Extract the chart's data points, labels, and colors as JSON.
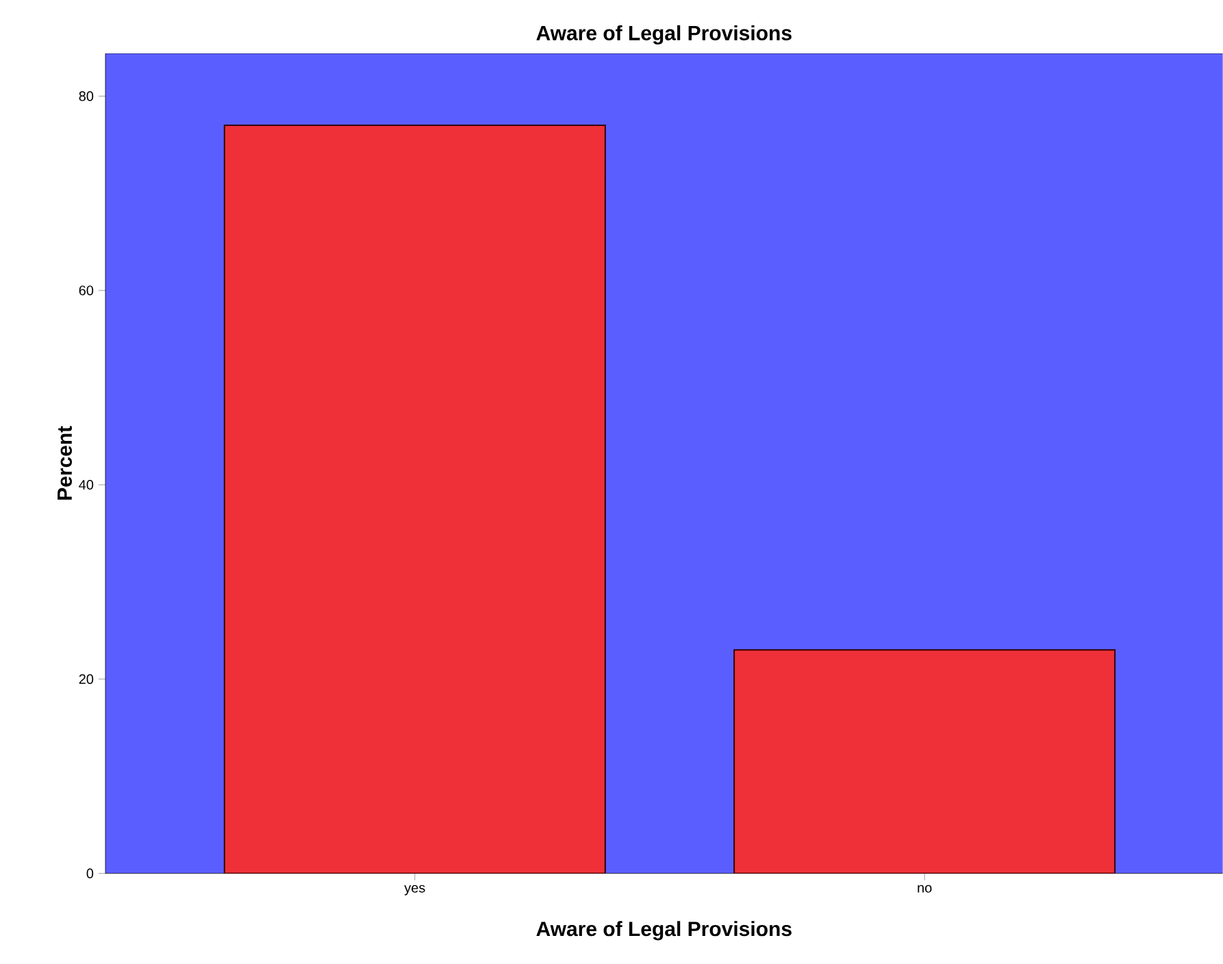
{
  "chart_data": {
    "type": "bar",
    "title": "Aware of Legal Provisions",
    "xlabel": "Aware of Legal Provisions",
    "ylabel": "Percent",
    "categories": [
      "yes",
      "no"
    ],
    "values": [
      77,
      23
    ],
    "color": "#ef3038",
    "ylim": [
      0,
      84.4
    ],
    "yticks": [
      0,
      20,
      40,
      60,
      80
    ]
  }
}
